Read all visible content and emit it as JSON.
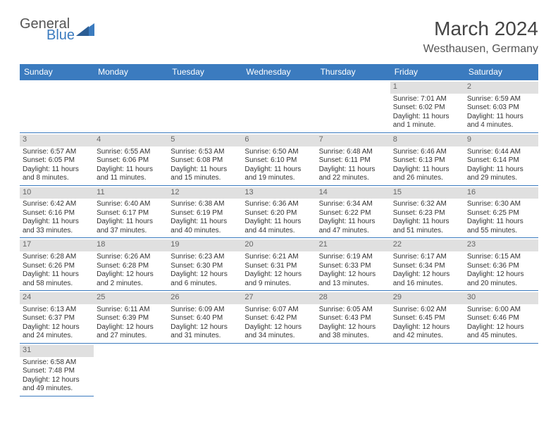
{
  "logo": {
    "text1": "General",
    "text2": "Blue",
    "color_text1": "#555555",
    "color_text2": "#3b7bbf"
  },
  "title": "March 2024",
  "subtitle": "Westhausen, Germany",
  "colors": {
    "header_bg": "#3b7bbf",
    "header_fg": "#ffffff",
    "daynum_bg": "#e0e0e0",
    "daynum_fg": "#666666",
    "cell_border": "#3b7bbf",
    "body_text": "#333333"
  },
  "weekdays": [
    "Sunday",
    "Monday",
    "Tuesday",
    "Wednesday",
    "Thursday",
    "Friday",
    "Saturday"
  ],
  "leading_blanks": 5,
  "days": [
    {
      "n": 1,
      "sunrise": "7:01 AM",
      "sunset": "6:02 PM",
      "daylight_l1": "Daylight: 11 hours",
      "daylight_l2": "and 1 minute."
    },
    {
      "n": 2,
      "sunrise": "6:59 AM",
      "sunset": "6:03 PM",
      "daylight_l1": "Daylight: 11 hours",
      "daylight_l2": "and 4 minutes."
    },
    {
      "n": 3,
      "sunrise": "6:57 AM",
      "sunset": "6:05 PM",
      "daylight_l1": "Daylight: 11 hours",
      "daylight_l2": "and 8 minutes."
    },
    {
      "n": 4,
      "sunrise": "6:55 AM",
      "sunset": "6:06 PM",
      "daylight_l1": "Daylight: 11 hours",
      "daylight_l2": "and 11 minutes."
    },
    {
      "n": 5,
      "sunrise": "6:53 AM",
      "sunset": "6:08 PM",
      "daylight_l1": "Daylight: 11 hours",
      "daylight_l2": "and 15 minutes."
    },
    {
      "n": 6,
      "sunrise": "6:50 AM",
      "sunset": "6:10 PM",
      "daylight_l1": "Daylight: 11 hours",
      "daylight_l2": "and 19 minutes."
    },
    {
      "n": 7,
      "sunrise": "6:48 AM",
      "sunset": "6:11 PM",
      "daylight_l1": "Daylight: 11 hours",
      "daylight_l2": "and 22 minutes."
    },
    {
      "n": 8,
      "sunrise": "6:46 AM",
      "sunset": "6:13 PM",
      "daylight_l1": "Daylight: 11 hours",
      "daylight_l2": "and 26 minutes."
    },
    {
      "n": 9,
      "sunrise": "6:44 AM",
      "sunset": "6:14 PM",
      "daylight_l1": "Daylight: 11 hours",
      "daylight_l2": "and 29 minutes."
    },
    {
      "n": 10,
      "sunrise": "6:42 AM",
      "sunset": "6:16 PM",
      "daylight_l1": "Daylight: 11 hours",
      "daylight_l2": "and 33 minutes."
    },
    {
      "n": 11,
      "sunrise": "6:40 AM",
      "sunset": "6:17 PM",
      "daylight_l1": "Daylight: 11 hours",
      "daylight_l2": "and 37 minutes."
    },
    {
      "n": 12,
      "sunrise": "6:38 AM",
      "sunset": "6:19 PM",
      "daylight_l1": "Daylight: 11 hours",
      "daylight_l2": "and 40 minutes."
    },
    {
      "n": 13,
      "sunrise": "6:36 AM",
      "sunset": "6:20 PM",
      "daylight_l1": "Daylight: 11 hours",
      "daylight_l2": "and 44 minutes."
    },
    {
      "n": 14,
      "sunrise": "6:34 AM",
      "sunset": "6:22 PM",
      "daylight_l1": "Daylight: 11 hours",
      "daylight_l2": "and 47 minutes."
    },
    {
      "n": 15,
      "sunrise": "6:32 AM",
      "sunset": "6:23 PM",
      "daylight_l1": "Daylight: 11 hours",
      "daylight_l2": "and 51 minutes."
    },
    {
      "n": 16,
      "sunrise": "6:30 AM",
      "sunset": "6:25 PM",
      "daylight_l1": "Daylight: 11 hours",
      "daylight_l2": "and 55 minutes."
    },
    {
      "n": 17,
      "sunrise": "6:28 AM",
      "sunset": "6:26 PM",
      "daylight_l1": "Daylight: 11 hours",
      "daylight_l2": "and 58 minutes."
    },
    {
      "n": 18,
      "sunrise": "6:26 AM",
      "sunset": "6:28 PM",
      "daylight_l1": "Daylight: 12 hours",
      "daylight_l2": "and 2 minutes."
    },
    {
      "n": 19,
      "sunrise": "6:23 AM",
      "sunset": "6:30 PM",
      "daylight_l1": "Daylight: 12 hours",
      "daylight_l2": "and 6 minutes."
    },
    {
      "n": 20,
      "sunrise": "6:21 AM",
      "sunset": "6:31 PM",
      "daylight_l1": "Daylight: 12 hours",
      "daylight_l2": "and 9 minutes."
    },
    {
      "n": 21,
      "sunrise": "6:19 AM",
      "sunset": "6:33 PM",
      "daylight_l1": "Daylight: 12 hours",
      "daylight_l2": "and 13 minutes."
    },
    {
      "n": 22,
      "sunrise": "6:17 AM",
      "sunset": "6:34 PM",
      "daylight_l1": "Daylight: 12 hours",
      "daylight_l2": "and 16 minutes."
    },
    {
      "n": 23,
      "sunrise": "6:15 AM",
      "sunset": "6:36 PM",
      "daylight_l1": "Daylight: 12 hours",
      "daylight_l2": "and 20 minutes."
    },
    {
      "n": 24,
      "sunrise": "6:13 AM",
      "sunset": "6:37 PM",
      "daylight_l1": "Daylight: 12 hours",
      "daylight_l2": "and 24 minutes."
    },
    {
      "n": 25,
      "sunrise": "6:11 AM",
      "sunset": "6:39 PM",
      "daylight_l1": "Daylight: 12 hours",
      "daylight_l2": "and 27 minutes."
    },
    {
      "n": 26,
      "sunrise": "6:09 AM",
      "sunset": "6:40 PM",
      "daylight_l1": "Daylight: 12 hours",
      "daylight_l2": "and 31 minutes."
    },
    {
      "n": 27,
      "sunrise": "6:07 AM",
      "sunset": "6:42 PM",
      "daylight_l1": "Daylight: 12 hours",
      "daylight_l2": "and 34 minutes."
    },
    {
      "n": 28,
      "sunrise": "6:05 AM",
      "sunset": "6:43 PM",
      "daylight_l1": "Daylight: 12 hours",
      "daylight_l2": "and 38 minutes."
    },
    {
      "n": 29,
      "sunrise": "6:02 AM",
      "sunset": "6:45 PM",
      "daylight_l1": "Daylight: 12 hours",
      "daylight_l2": "and 42 minutes."
    },
    {
      "n": 30,
      "sunrise": "6:00 AM",
      "sunset": "6:46 PM",
      "daylight_l1": "Daylight: 12 hours",
      "daylight_l2": "and 45 minutes."
    },
    {
      "n": 31,
      "sunrise": "6:58 AM",
      "sunset": "7:48 PM",
      "daylight_l1": "Daylight: 12 hours",
      "daylight_l2": "and 49 minutes."
    }
  ]
}
